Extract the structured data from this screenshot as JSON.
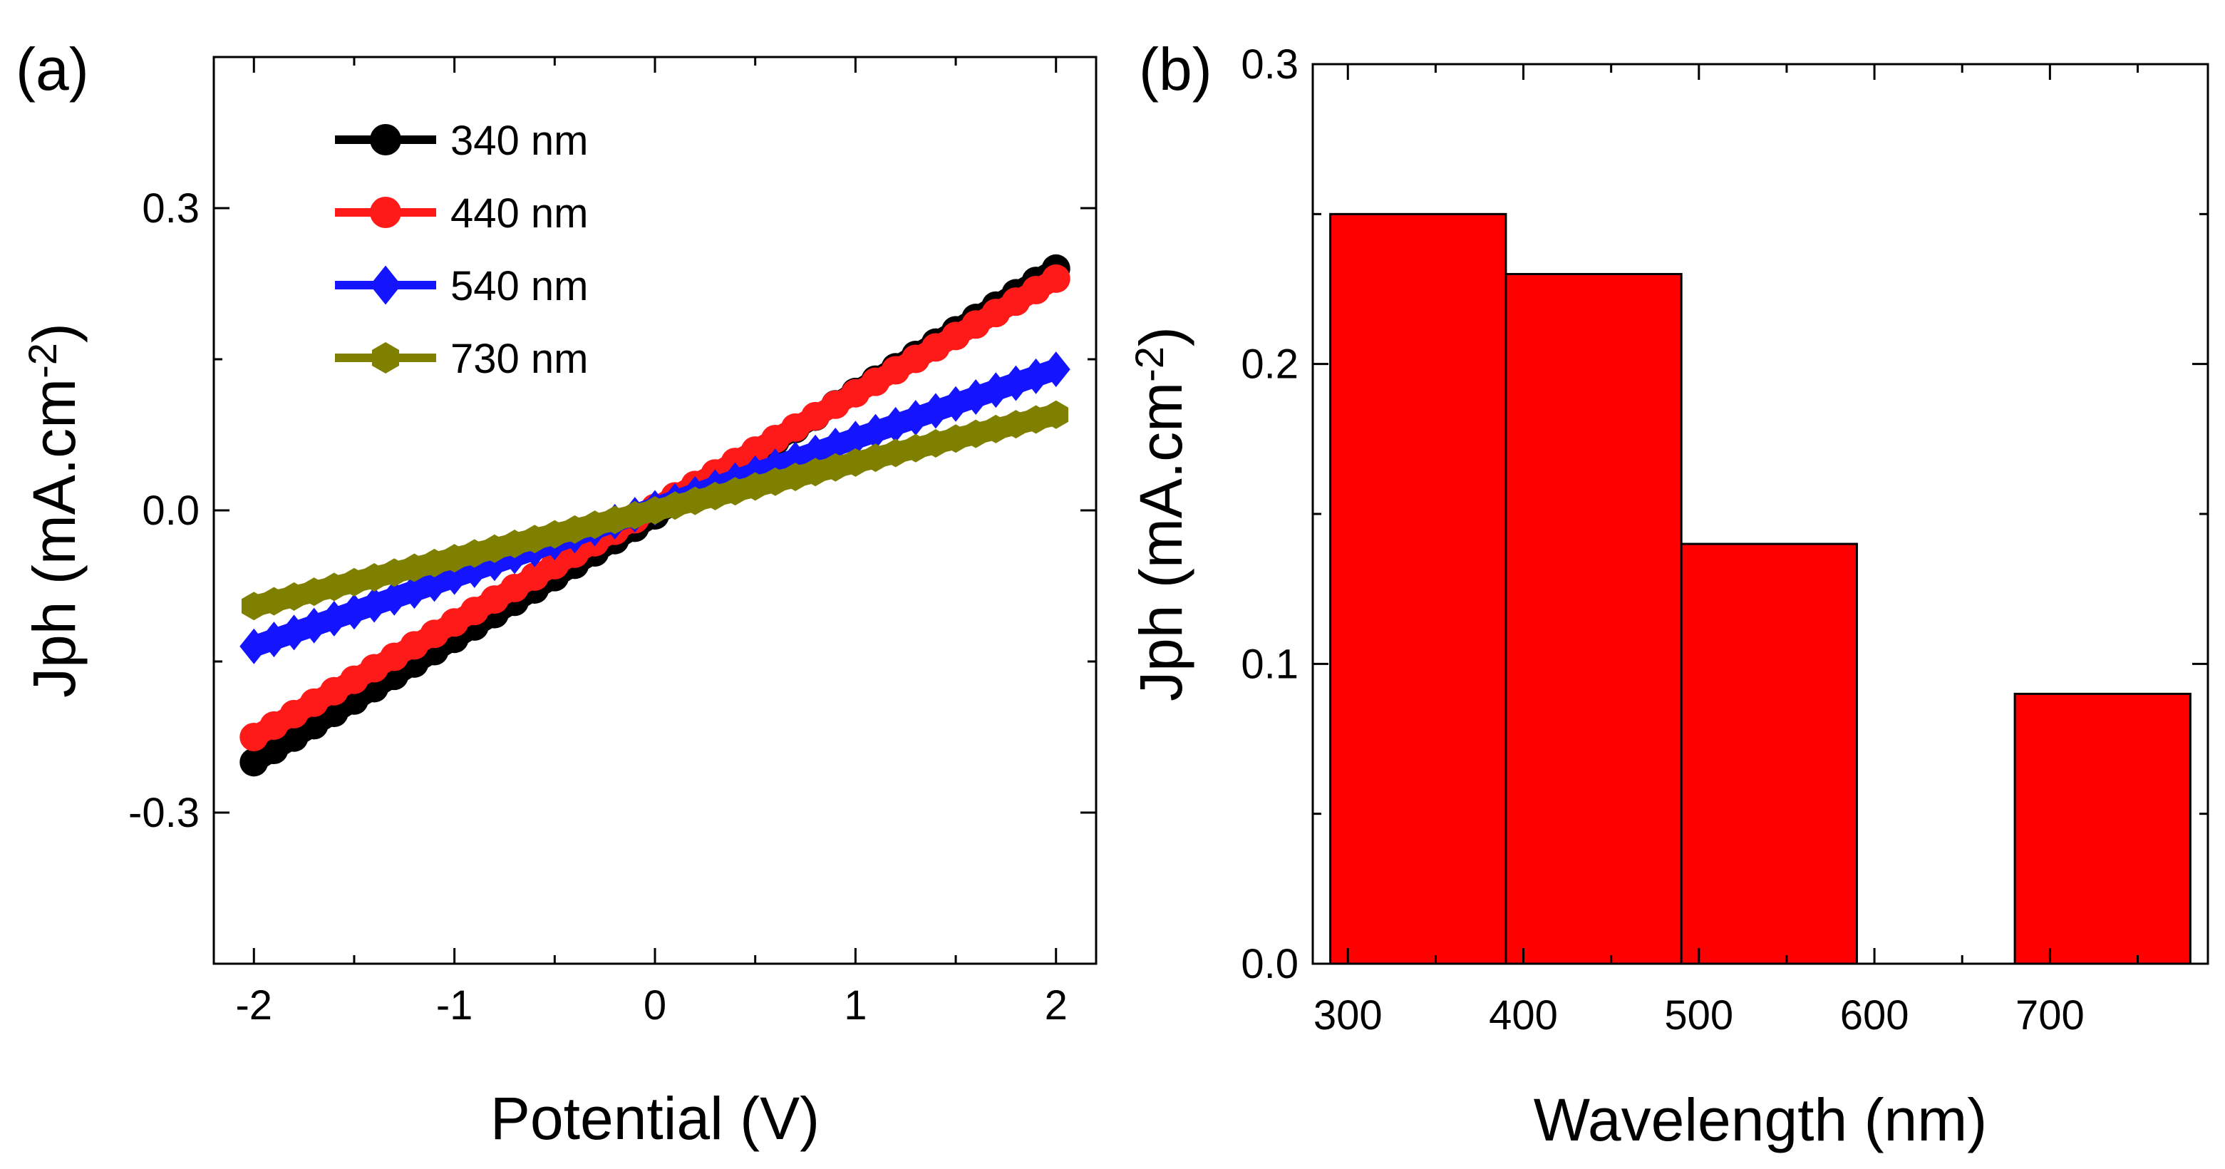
{
  "chart_data": [
    {
      "panel": "(a)",
      "type": "line",
      "xlabel": "Potential (V)",
      "ylabel_main": "Jph (mA.cm",
      "ylabel_sup": "-2",
      "ylabel_close": ")",
      "xlim": [
        -2.2,
        2.2
      ],
      "ylim": [
        -0.45,
        0.45
      ],
      "xticks": [
        -2,
        -1,
        0,
        1,
        2
      ],
      "xtick_labels": [
        "-2",
        "-1",
        "0",
        "1",
        "2"
      ],
      "yticks": [
        -0.3,
        0.0,
        0.3
      ],
      "ytick_labels": [
        "-0.3",
        "0.0",
        "0.3"
      ],
      "legend_position": "top-left",
      "x": [
        -2,
        2
      ],
      "series": [
        {
          "name": "340 nm",
          "values": [
            -0.25,
            0.24
          ],
          "color": "#000000",
          "marker": "circle"
        },
        {
          "name": "440 nm",
          "values": [
            -0.225,
            0.23
          ],
          "color": "#ff1a1a",
          "marker": "circle"
        },
        {
          "name": "540 nm",
          "values": [
            -0.135,
            0.14
          ],
          "color": "#1414ff",
          "marker": "diamond"
        },
        {
          "name": "730 nm",
          "values": [
            -0.095,
            0.095
          ],
          "color": "#808000",
          "marker": "hexagon"
        }
      ]
    },
    {
      "panel": "(b)",
      "type": "bar",
      "xlabel": "Wavelength (nm)",
      "ylabel_main": "Jph (mA.cm",
      "ylabel_sup": "-2",
      "ylabel_close": ")",
      "xlim": [
        280,
        790
      ],
      "ylim": [
        0,
        0.3
      ],
      "xticks": [
        300,
        400,
        500,
        600,
        700
      ],
      "xtick_labels": [
        "300",
        "400",
        "500",
        "600",
        "700"
      ],
      "yticks": [
        0.0,
        0.1,
        0.2,
        0.3
      ],
      "ytick_labels": [
        "0.0",
        "0.1",
        "0.2",
        "0.3"
      ],
      "bar_color": "#ff0000",
      "bars": [
        {
          "center": 340,
          "width": 100,
          "value": 0.25
        },
        {
          "center": 440,
          "width": 100,
          "value": 0.23
        },
        {
          "center": 540,
          "width": 100,
          "value": 0.14
        },
        {
          "center": 640,
          "width": 100,
          "value": 0.0
        },
        {
          "center": 730,
          "width": 100,
          "value": 0.09
        }
      ]
    }
  ]
}
